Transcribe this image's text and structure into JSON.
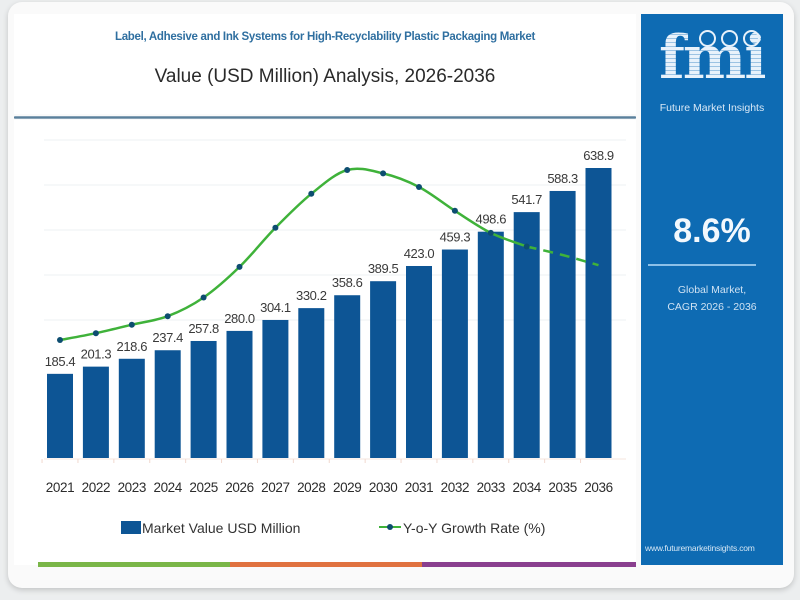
{
  "header": {
    "title": "Label, Adhesive and Ink Systems for High-Recyclability Plastic Packaging Market",
    "subtitle": "Value (USD Million) Analysis, 2026-2036"
  },
  "panel": {
    "logo_text": "fmi",
    "logo_subtitle": "Future Market Insights",
    "cagr_value": "8.6%",
    "cagr_label_line1": "Global Market,",
    "cagr_label_line2": "CAGR 2026 - 2036",
    "website": "www.futuremarketinsights.com"
  },
  "colors": {
    "bar": "#0d5595",
    "line": "#3fb23a",
    "marker": "#0d4d70",
    "panel": "#0e6bb3",
    "title_accent": "#2f6fa0",
    "bottom_segments": [
      "#7ab648",
      "#e0723f",
      "#8a3f8f"
    ]
  },
  "chart_data": {
    "type": "bar",
    "title": "Label, Adhesive and Ink Systems for High-Recyclability Plastic Packaging Market",
    "subtitle": "Value (USD Million) Analysis, 2026-2036",
    "xlabel": "",
    "ylabel": "",
    "categories": [
      "2021",
      "2022",
      "2023",
      "2024",
      "2025",
      "2026",
      "2027",
      "2028",
      "2029",
      "2030",
      "2031",
      "2032",
      "2033",
      "2034",
      "2035",
      "2036"
    ],
    "ylim": [
      0,
      700
    ],
    "grid": true,
    "legend_position": "bottom",
    "series": [
      {
        "name": "Market Value USD Million",
        "type": "bar",
        "values": [
          185.4,
          201.3,
          218.6,
          237.4,
          257.8,
          280.0,
          304.1,
          330.2,
          358.6,
          389.5,
          423.0,
          459.3,
          498.6,
          541.7,
          588.3,
          638.9
        ],
        "labels": [
          "185.4",
          "201.3",
          "218.6",
          "237.4",
          "257.8",
          "280.0",
          "304.1",
          "330.2",
          "358.6",
          "389.5",
          "423.0",
          "459.3",
          "498.6",
          "541.7",
          "588.3",
          "638.9"
        ]
      },
      {
        "name": "Y-o-Y Growth Rate (%)",
        "type": "line",
        "axis": "unlabeled",
        "relative_values": [
          0.0,
          0.04,
          0.09,
          0.14,
          0.25,
          0.43,
          0.66,
          0.86,
          1.0,
          0.98,
          0.9,
          0.76,
          0.63,
          0.55,
          0.5,
          0.44
        ],
        "dashed_from_index": 13
      }
    ]
  },
  "legend": {
    "bar_label": "Market Value USD Million",
    "line_label": "Y-o-Y Growth Rate (%)"
  }
}
